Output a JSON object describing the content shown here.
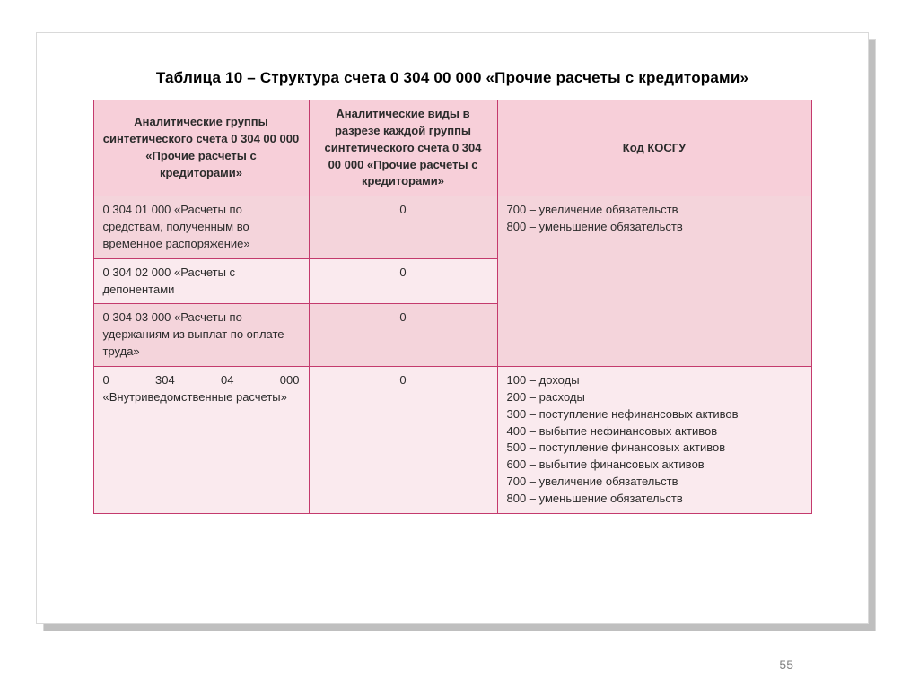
{
  "title": "Таблица 10 – Структура счета 0 304 00 000 «Прочие расчеты с кредиторами»",
  "page_number": "55",
  "table": {
    "type": "table",
    "border_color": "#c43a6d",
    "header_bg": "#f7cfd9",
    "row_bg_a": "#f4d4db",
    "row_bg_b": "#faeaee",
    "columns": [
      "Аналитические группы синтетического счета 0 304 00 000 «Прочие расчеты с кредиторами»",
      "Аналитические виды в разрезе каждой группы синтетического счета 0 304 00 000 «Прочие расчеты с кредиторами»",
      "Код КОСГУ"
    ],
    "rows": [
      {
        "c1": "0 304 01 000 «Расчеты по средствам, полученным во временное распоряжение»",
        "c2": "0",
        "c3": "700 – увеличение обязательств\n800 – уменьшение обязательств",
        "c3_rowspan": 3,
        "shade": "a"
      },
      {
        "c1": "0 304 02 000 «Расчеты с депонентами",
        "c2": "0",
        "shade": "b"
      },
      {
        "c1": "0 304 03 000 «Расчеты по удержаниям из выплат по оплате труда»",
        "c2": "0",
        "shade": "a"
      },
      {
        "c1": "0 304 04 000 «Внутриведомственные расчеты»",
        "c2": "0",
        "c3": "100 – доходы\n200 – расходы\n300 – поступление нефинансовых активов\n400 – выбытие нефинансовых активов\n500 – поступление финансовых активов\n600 – выбытие финансовых активов\n700 – увеличение обязательств\n800 – уменьшение обязательств",
        "shade": "b",
        "c1_justify": true
      }
    ]
  }
}
